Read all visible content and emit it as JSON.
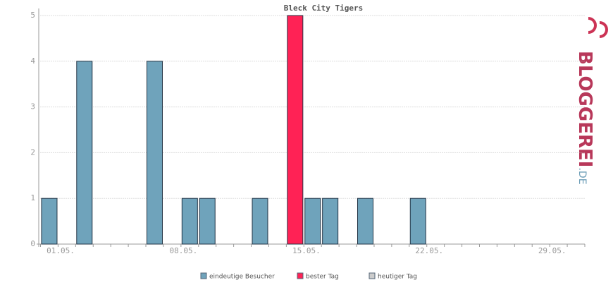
{
  "chart_data": {
    "type": "bar",
    "title": "Bleck City Tigers",
    "categories": [
      "01.05.",
      null,
      null,
      null,
      null,
      null,
      null,
      "08.05.",
      null,
      null,
      null,
      null,
      null,
      null,
      "15.05.",
      null,
      null,
      null,
      null,
      null,
      null,
      "22.05.",
      null,
      null,
      null,
      null,
      null,
      null,
      "29.05.",
      null,
      null
    ],
    "series": [
      {
        "name": "eindeutige Besucher",
        "color": "#6fa3bb",
        "values": [
          1,
          null,
          4,
          null,
          null,
          null,
          4,
          null,
          1,
          1,
          null,
          null,
          1,
          null,
          null,
          1,
          1,
          null,
          1,
          null,
          null,
          1,
          null,
          null,
          null,
          null,
          null,
          null,
          null,
          null,
          null
        ]
      },
      {
        "name": "bester Tag",
        "color": "#ff2255",
        "values": [
          null,
          null,
          null,
          null,
          null,
          null,
          null,
          null,
          null,
          null,
          null,
          null,
          null,
          null,
          5,
          null,
          null,
          null,
          null,
          null,
          null,
          null,
          null,
          null,
          null,
          null,
          null,
          null,
          null,
          null,
          null
        ]
      },
      {
        "name": "heutiger Tag",
        "color": "#cccccc",
        "values": [
          null,
          null,
          null,
          null,
          null,
          null,
          null,
          null,
          null,
          null,
          null,
          null,
          null,
          null,
          null,
          null,
          null,
          null,
          null,
          null,
          null,
          null,
          null,
          null,
          null,
          null,
          null,
          null,
          null,
          null,
          null
        ]
      }
    ],
    "ylim": [
      0,
      5
    ],
    "yticks": [
      0,
      1,
      2,
      3,
      4,
      5
    ],
    "grid": true,
    "watermark": {
      "name": "BLOGGEREI",
      "suffix": ".DE"
    }
  }
}
